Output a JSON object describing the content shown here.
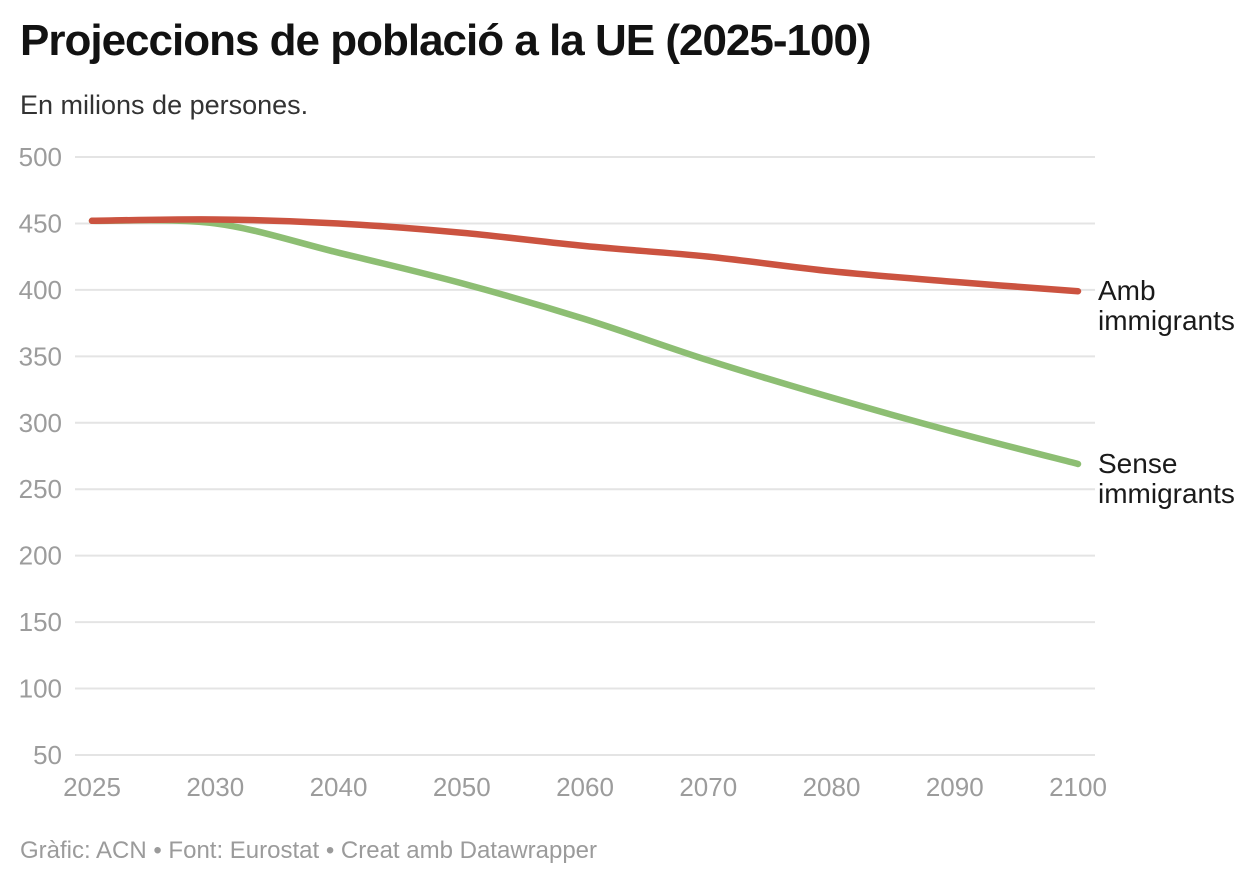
{
  "header": {
    "title": "Projeccions de població a la UE (2025-100)",
    "subtitle": "En milions de persones."
  },
  "footer": {
    "text": "Gràfic: ACN • Font: Eurostat • Creat amb Datawrapper"
  },
  "chart_data": {
    "type": "line",
    "title": "Projeccions de població a la UE (2025-100)",
    "subtitle": "En milions de persones.",
    "x": [
      2025,
      2030,
      2040,
      2050,
      2060,
      2070,
      2080,
      2090,
      2100
    ],
    "x_tick_labels": [
      "2025",
      "2030",
      "2040",
      "2050",
      "2060",
      "2070",
      "2080",
      "2090",
      "2100"
    ],
    "x_spacing": "equal-categories",
    "series": [
      {
        "name": "Amb immigrants",
        "color": "#cb5340",
        "values": [
          452,
          453,
          450,
          443,
          433,
          425,
          414,
          406,
          399
        ]
      },
      {
        "name": "Sense immigrants",
        "color": "#8dbe73",
        "values": [
          452,
          450,
          428,
          405,
          378,
          347,
          319,
          293,
          269
        ]
      }
    ],
    "ylim": [
      50,
      500
    ],
    "y_ticks": [
      50,
      100,
      150,
      200,
      250,
      300,
      350,
      400,
      450,
      500
    ],
    "grid": true,
    "gridline_color": "#e4e4e4",
    "tick_label_color": "#9c9c9c",
    "label_color": "#1a1a1a",
    "legend_position": "direct-labels-right",
    "line_width": 6.5
  }
}
